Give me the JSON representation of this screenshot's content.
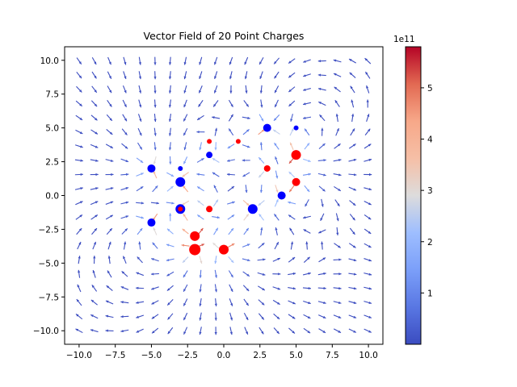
{
  "chart_data": {
    "type": "quiver",
    "title": "Vector Field of 20 Point Charges",
    "xlabel": "",
    "ylabel": "",
    "xlim": [
      -11,
      11
    ],
    "ylim": [
      -11,
      11
    ],
    "x_ticks": [
      "−10.0",
      "−7.5",
      "−5.0",
      "−2.5",
      "0.0",
      "2.5",
      "5.0",
      "7.5",
      "10.0"
    ],
    "x_tick_values": [
      -10,
      -7.5,
      -5,
      -2.5,
      0,
      2.5,
      5,
      7.5,
      10
    ],
    "y_ticks": [
      "−10.0",
      "−7.5",
      "−5.0",
      "−2.5",
      "0.0",
      "2.5",
      "5.0",
      "7.5",
      "10.0"
    ],
    "y_tick_values": [
      -10,
      -7.5,
      -5,
      -2.5,
      0,
      2.5,
      5,
      7.5,
      10
    ],
    "grid": false,
    "colormap": "coolwarm",
    "colorbar": {
      "range": [
        0.0,
        5.8
      ],
      "ticks": [
        "1",
        "2",
        "3",
        "4",
        "5"
      ],
      "tick_values": [
        1,
        2,
        3,
        4,
        5
      ],
      "offset_label": "1e11"
    },
    "grid_spacing": 1.05,
    "grid_range": [
      -10,
      10
    ],
    "charges": [
      {
        "x": -5,
        "y": 2,
        "sign": "negative",
        "magnitude": 3
      },
      {
        "x": -3,
        "y": 2,
        "sign": "negative",
        "magnitude": 1
      },
      {
        "x": -3,
        "y": 1,
        "sign": "negative",
        "magnitude": 4
      },
      {
        "x": -1,
        "y": 3,
        "sign": "negative",
        "magnitude": 2
      },
      {
        "x": -5,
        "y": -2,
        "sign": "negative",
        "magnitude": 3
      },
      {
        "x": -3,
        "y": -1,
        "sign": "negative",
        "magnitude": 4
      },
      {
        "x": 3,
        "y": 5,
        "sign": "negative",
        "magnitude": 3
      },
      {
        "x": 5,
        "y": 5,
        "sign": "negative",
        "magnitude": 1
      },
      {
        "x": 4,
        "y": 0,
        "sign": "negative",
        "magnitude": 3
      },
      {
        "x": 2,
        "y": -1,
        "sign": "negative",
        "magnitude": 4
      },
      {
        "x": -1,
        "y": 4,
        "sign": "positive",
        "magnitude": 1
      },
      {
        "x": 1,
        "y": 4,
        "sign": "positive",
        "magnitude": 1
      },
      {
        "x": 3,
        "y": 2,
        "sign": "positive",
        "magnitude": 2
      },
      {
        "x": 5,
        "y": 3,
        "sign": "positive",
        "magnitude": 4
      },
      {
        "x": 5,
        "y": 1,
        "sign": "positive",
        "magnitude": 3
      },
      {
        "x": -1,
        "y": -1,
        "sign": "positive",
        "magnitude": 2
      },
      {
        "x": -2,
        "y": -3,
        "sign": "positive",
        "magnitude": 4
      },
      {
        "x": -2,
        "y": -4,
        "sign": "positive",
        "magnitude": 5
      },
      {
        "x": 0,
        "y": -4,
        "sign": "positive",
        "magnitude": 4
      },
      {
        "x": -3,
        "y": -1,
        "sign": "positive",
        "magnitude": 1
      }
    ],
    "colors": {
      "negative_charge": "#0000ff",
      "positive_charge": "#ff0000",
      "arrow_low": "#3b4cc0",
      "arrow_high": "#b40426"
    }
  }
}
